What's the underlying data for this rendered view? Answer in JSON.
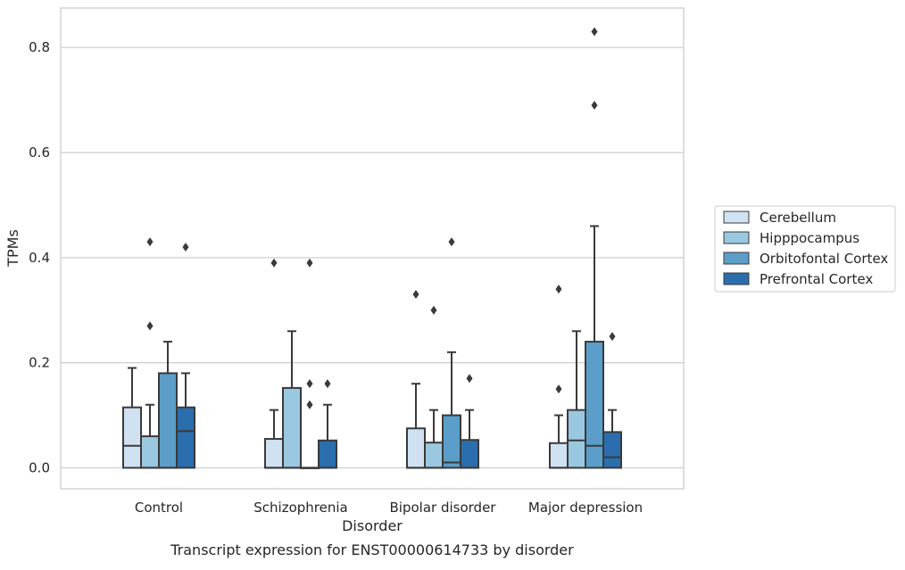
{
  "caption": "Transcript expression for ENST00000614733 by disorder",
  "colors": {
    "box_fill": [
      "#d0e1f2",
      "#9ac8e0",
      "#5a9ec9",
      "#2a6ead"
    ],
    "edge": "#3a3a3a",
    "grid": "#cccccc",
    "frame": "#cccccc"
  },
  "chart_data": {
    "type": "box",
    "title": "",
    "xlabel": "Disorder",
    "ylabel": "TPMs",
    "categories": [
      "Control",
      "Schizophrenia",
      "Bipolar disorder",
      "Major depression"
    ],
    "ylim": [
      -0.04,
      0.875
    ],
    "yticks": [
      0.0,
      0.2,
      0.4,
      0.6,
      0.8
    ],
    "ytick_labels": [
      "0.0",
      "0.2",
      "0.4",
      "0.6",
      "0.8"
    ],
    "grid": true,
    "legend_position": "right",
    "series": [
      {
        "name": "Cerebellum",
        "boxes": [
          {
            "q1": 0.0,
            "median": 0.042,
            "q3": 0.115,
            "whislo": 0.0,
            "whishi": 0.19,
            "fliers": []
          },
          {
            "q1": 0.0,
            "median": 0.0,
            "q3": 0.055,
            "whislo": 0.0,
            "whishi": 0.11,
            "fliers": [
              0.39
            ]
          },
          {
            "q1": 0.0,
            "median": 0.0,
            "q3": 0.075,
            "whislo": 0.0,
            "whishi": 0.16,
            "fliers": [
              0.33
            ]
          },
          {
            "q1": 0.0,
            "median": 0.0,
            "q3": 0.047,
            "whislo": 0.0,
            "whishi": 0.1,
            "fliers": [
              0.15,
              0.34
            ]
          }
        ]
      },
      {
        "name": "Hipppocampus",
        "boxes": [
          {
            "q1": 0.0,
            "median": 0.0,
            "q3": 0.06,
            "whislo": 0.0,
            "whishi": 0.12,
            "fliers": [
              0.27,
              0.43
            ]
          },
          {
            "q1": 0.0,
            "median": 0.0,
            "q3": 0.152,
            "whislo": 0.0,
            "whishi": 0.26,
            "fliers": []
          },
          {
            "q1": 0.0,
            "median": 0.0,
            "q3": 0.048,
            "whislo": 0.0,
            "whishi": 0.11,
            "fliers": [
              0.3
            ]
          },
          {
            "q1": 0.0,
            "median": 0.052,
            "q3": 0.11,
            "whislo": 0.0,
            "whishi": 0.26,
            "fliers": []
          }
        ]
      },
      {
        "name": "Orbitofontal Cortex",
        "boxes": [
          {
            "q1": 0.0,
            "median": 0.0,
            "q3": 0.18,
            "whislo": 0.0,
            "whishi": 0.24,
            "fliers": []
          },
          {
            "q1": 0.0,
            "median": 0.0,
            "q3": 0.0,
            "whislo": 0.0,
            "whishi": 0.0,
            "fliers": [
              0.12,
              0.16,
              0.39
            ]
          },
          {
            "q1": 0.0,
            "median": 0.01,
            "q3": 0.1,
            "whislo": 0.0,
            "whishi": 0.22,
            "fliers": [
              0.43
            ]
          },
          {
            "q1": 0.0,
            "median": 0.042,
            "q3": 0.24,
            "whislo": 0.0,
            "whishi": 0.46,
            "fliers": [
              0.69,
              0.83
            ]
          }
        ]
      },
      {
        "name": "Prefrontal Cortex",
        "boxes": [
          {
            "q1": 0.0,
            "median": 0.07,
            "q3": 0.115,
            "whislo": 0.0,
            "whishi": 0.18,
            "fliers": [
              0.42
            ]
          },
          {
            "q1": 0.0,
            "median": 0.0,
            "q3": 0.052,
            "whislo": 0.0,
            "whishi": 0.12,
            "fliers": [
              0.16
            ]
          },
          {
            "q1": 0.0,
            "median": 0.0,
            "q3": 0.053,
            "whislo": 0.0,
            "whishi": 0.11,
            "fliers": [
              0.17
            ]
          },
          {
            "q1": 0.0,
            "median": 0.02,
            "q3": 0.068,
            "whislo": 0.0,
            "whishi": 0.11,
            "fliers": [
              0.25
            ]
          }
        ]
      }
    ]
  }
}
